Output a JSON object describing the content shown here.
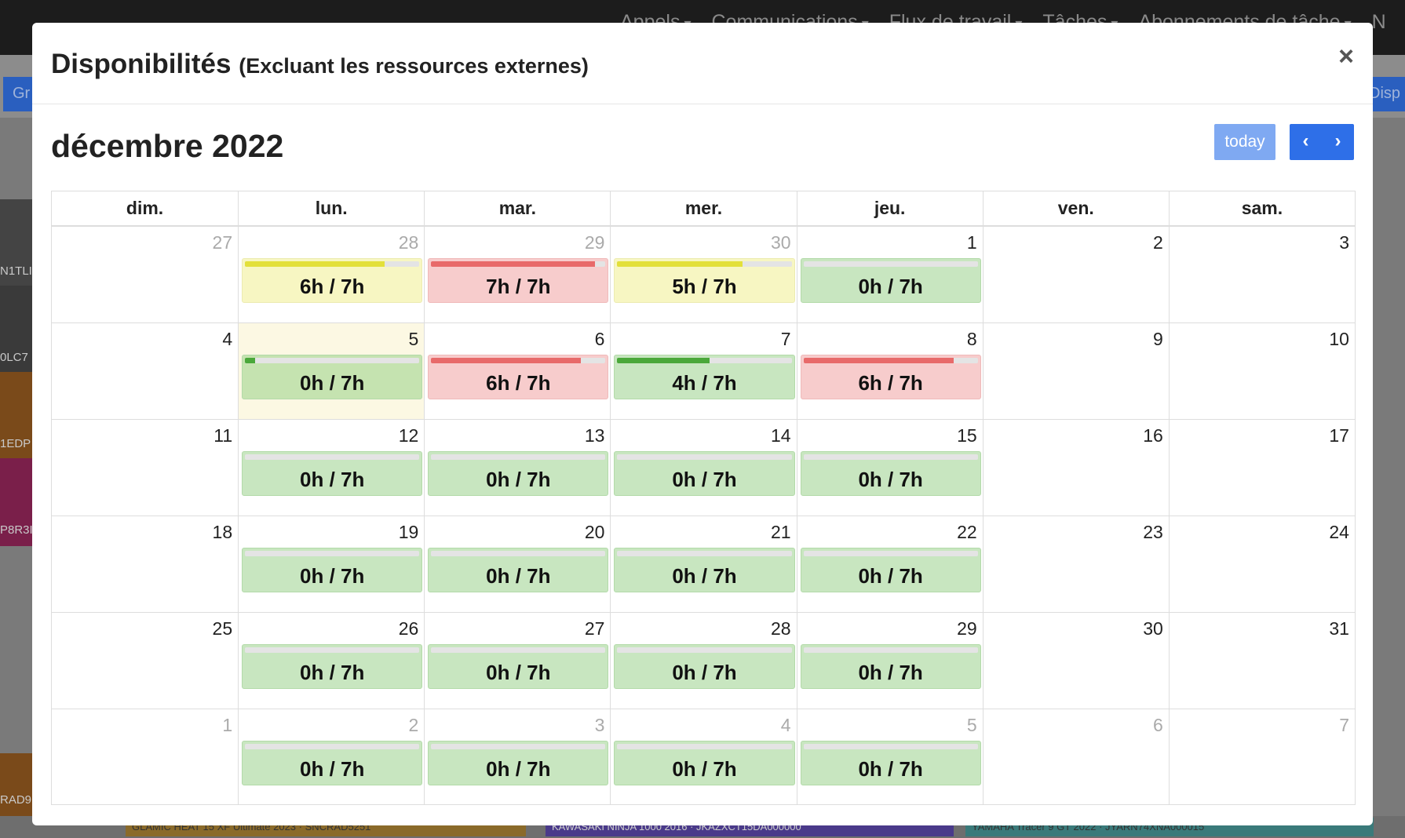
{
  "background": {
    "nav": [
      "Appels",
      "Communications",
      "Flux de travail",
      "Tâches",
      "Abonnements de tâche",
      "N"
    ],
    "left_button": "Gr",
    "right_button": "Disp",
    "row_labels": [
      "N1TLI",
      "0LC7",
      "1EDP",
      "P8R3I",
      "RAD9"
    ],
    "bottom_chips": [
      "GLAMIC HEAT 15 XF Ultimate 2023 · SNCRAD5251",
      "KAWASAKI NINJA 1000 2016 · JKAZXCT15DA000000",
      "YAMAHA Tracer 9 GT 2022 · JYARN74XNA000015"
    ]
  },
  "modal": {
    "title": "Disponibilités",
    "subtitle": "(Excluant les ressources externes)",
    "close_glyph": "×"
  },
  "toolbar": {
    "month_title": "décembre 2022",
    "today_label": "today",
    "prev_glyph": "‹",
    "next_glyph": "›"
  },
  "calendar": {
    "weekdays": [
      "dim.",
      "lun.",
      "mar.",
      "mer.",
      "jeu.",
      "ven.",
      "sam."
    ],
    "colors": {
      "green": "#4aa83a",
      "yellow": "#e3e03a",
      "red": "#e86a6a"
    },
    "weeks": [
      [
        {
          "day": "27",
          "other": true
        },
        {
          "day": "28",
          "other": true,
          "label": "6h / 7h",
          "status": "yellow",
          "fill": 0.8
        },
        {
          "day": "29",
          "other": true,
          "label": "7h / 7h",
          "status": "red",
          "fill": 0.94
        },
        {
          "day": "30",
          "other": true,
          "label": "5h / 7h",
          "status": "yellow",
          "fill": 0.72
        },
        {
          "day": "1",
          "label": "0h / 7h",
          "status": "green",
          "fill": 0
        },
        {
          "day": "2"
        },
        {
          "day": "3"
        }
      ],
      [
        {
          "day": "4"
        },
        {
          "day": "5",
          "today": true,
          "label": "0h / 7h",
          "status": "green",
          "fill": 0.06
        },
        {
          "day": "6",
          "label": "6h / 7h",
          "status": "red",
          "fill": 0.86
        },
        {
          "day": "7",
          "label": "4h / 7h",
          "status": "green",
          "fill": 0.53
        },
        {
          "day": "8",
          "label": "6h / 7h",
          "status": "red",
          "fill": 0.86
        },
        {
          "day": "9"
        },
        {
          "day": "10"
        }
      ],
      [
        {
          "day": "11"
        },
        {
          "day": "12",
          "label": "0h / 7h",
          "status": "green",
          "fill": 0
        },
        {
          "day": "13",
          "label": "0h / 7h",
          "status": "green",
          "fill": 0
        },
        {
          "day": "14",
          "label": "0h / 7h",
          "status": "green",
          "fill": 0
        },
        {
          "day": "15",
          "label": "0h / 7h",
          "status": "green",
          "fill": 0
        },
        {
          "day": "16"
        },
        {
          "day": "17"
        }
      ],
      [
        {
          "day": "18"
        },
        {
          "day": "19",
          "label": "0h / 7h",
          "status": "green",
          "fill": 0
        },
        {
          "day": "20",
          "label": "0h / 7h",
          "status": "green",
          "fill": 0
        },
        {
          "day": "21",
          "label": "0h / 7h",
          "status": "green",
          "fill": 0
        },
        {
          "day": "22",
          "label": "0h / 7h",
          "status": "green",
          "fill": 0
        },
        {
          "day": "23"
        },
        {
          "day": "24"
        }
      ],
      [
        {
          "day": "25"
        },
        {
          "day": "26",
          "label": "0h / 7h",
          "status": "green",
          "fill": 0
        },
        {
          "day": "27",
          "label": "0h / 7h",
          "status": "green",
          "fill": 0
        },
        {
          "day": "28",
          "label": "0h / 7h",
          "status": "green",
          "fill": 0
        },
        {
          "day": "29",
          "label": "0h / 7h",
          "status": "green",
          "fill": 0
        },
        {
          "day": "30"
        },
        {
          "day": "31"
        }
      ],
      [
        {
          "day": "1",
          "other": true
        },
        {
          "day": "2",
          "other": true,
          "label": "0h / 7h",
          "status": "green",
          "fill": 0
        },
        {
          "day": "3",
          "other": true,
          "label": "0h / 7h",
          "status": "green",
          "fill": 0
        },
        {
          "day": "4",
          "other": true,
          "label": "0h / 7h",
          "status": "green",
          "fill": 0
        },
        {
          "day": "5",
          "other": true,
          "label": "0h / 7h",
          "status": "green",
          "fill": 0
        },
        {
          "day": "6",
          "other": true
        },
        {
          "day": "7",
          "other": true
        }
      ]
    ]
  }
}
